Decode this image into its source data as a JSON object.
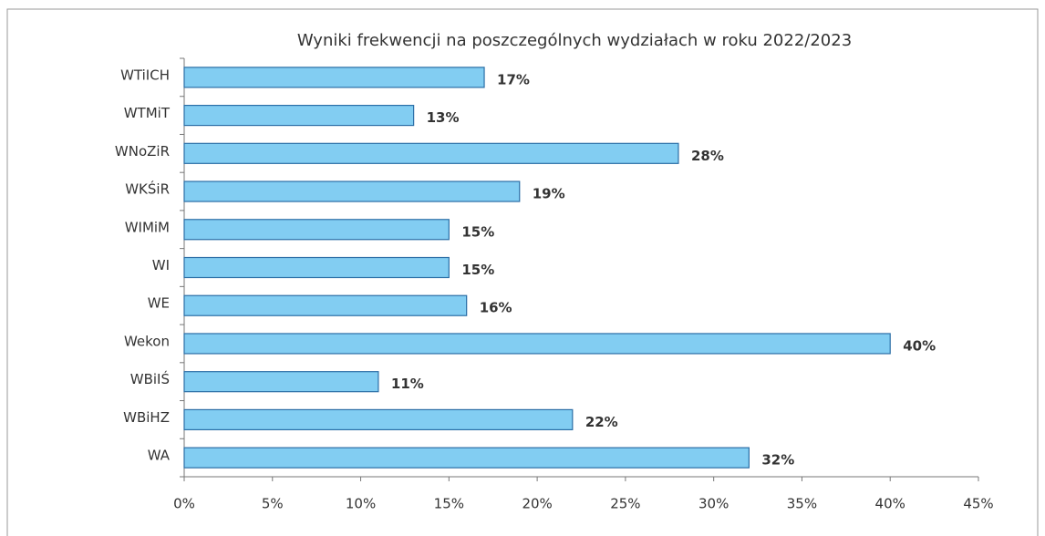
{
  "chart_data": {
    "type": "bar",
    "orientation": "horizontal",
    "title": "Wyniki frekwencji na poszczególnych wydziałach w roku 2022/2023",
    "categories": [
      "WTiICH",
      "WTMiT",
      "WNoZiR",
      "WKŚiR",
      "WIMiM",
      "WI",
      "WE",
      "Wekon",
      "WBiIŚ",
      "WBiHZ",
      "WA"
    ],
    "values": [
      17,
      13,
      28,
      19,
      15,
      15,
      16,
      40,
      11,
      22,
      32
    ],
    "value_labels": [
      "17%",
      "13%",
      "28%",
      "19%",
      "15%",
      "15%",
      "16%",
      "40%",
      "11%",
      "22%",
      "32%"
    ],
    "color": "#82cdf2",
    "xlim": [
      0,
      45
    ],
    "xticks": [
      {
        "value": 0,
        "label": "0%"
      },
      {
        "value": 5,
        "label": "5%"
      },
      {
        "value": 10,
        "label": "10%"
      },
      {
        "value": 15,
        "label": "15%"
      },
      {
        "value": 20,
        "label": "20%"
      },
      {
        "value": 25,
        "label": "25%"
      },
      {
        "value": 30,
        "label": "30%"
      },
      {
        "value": 35,
        "label": "35%"
      },
      {
        "value": 40,
        "label": "40%"
      },
      {
        "value": 45,
        "label": "45%"
      }
    ],
    "grid": false
  }
}
